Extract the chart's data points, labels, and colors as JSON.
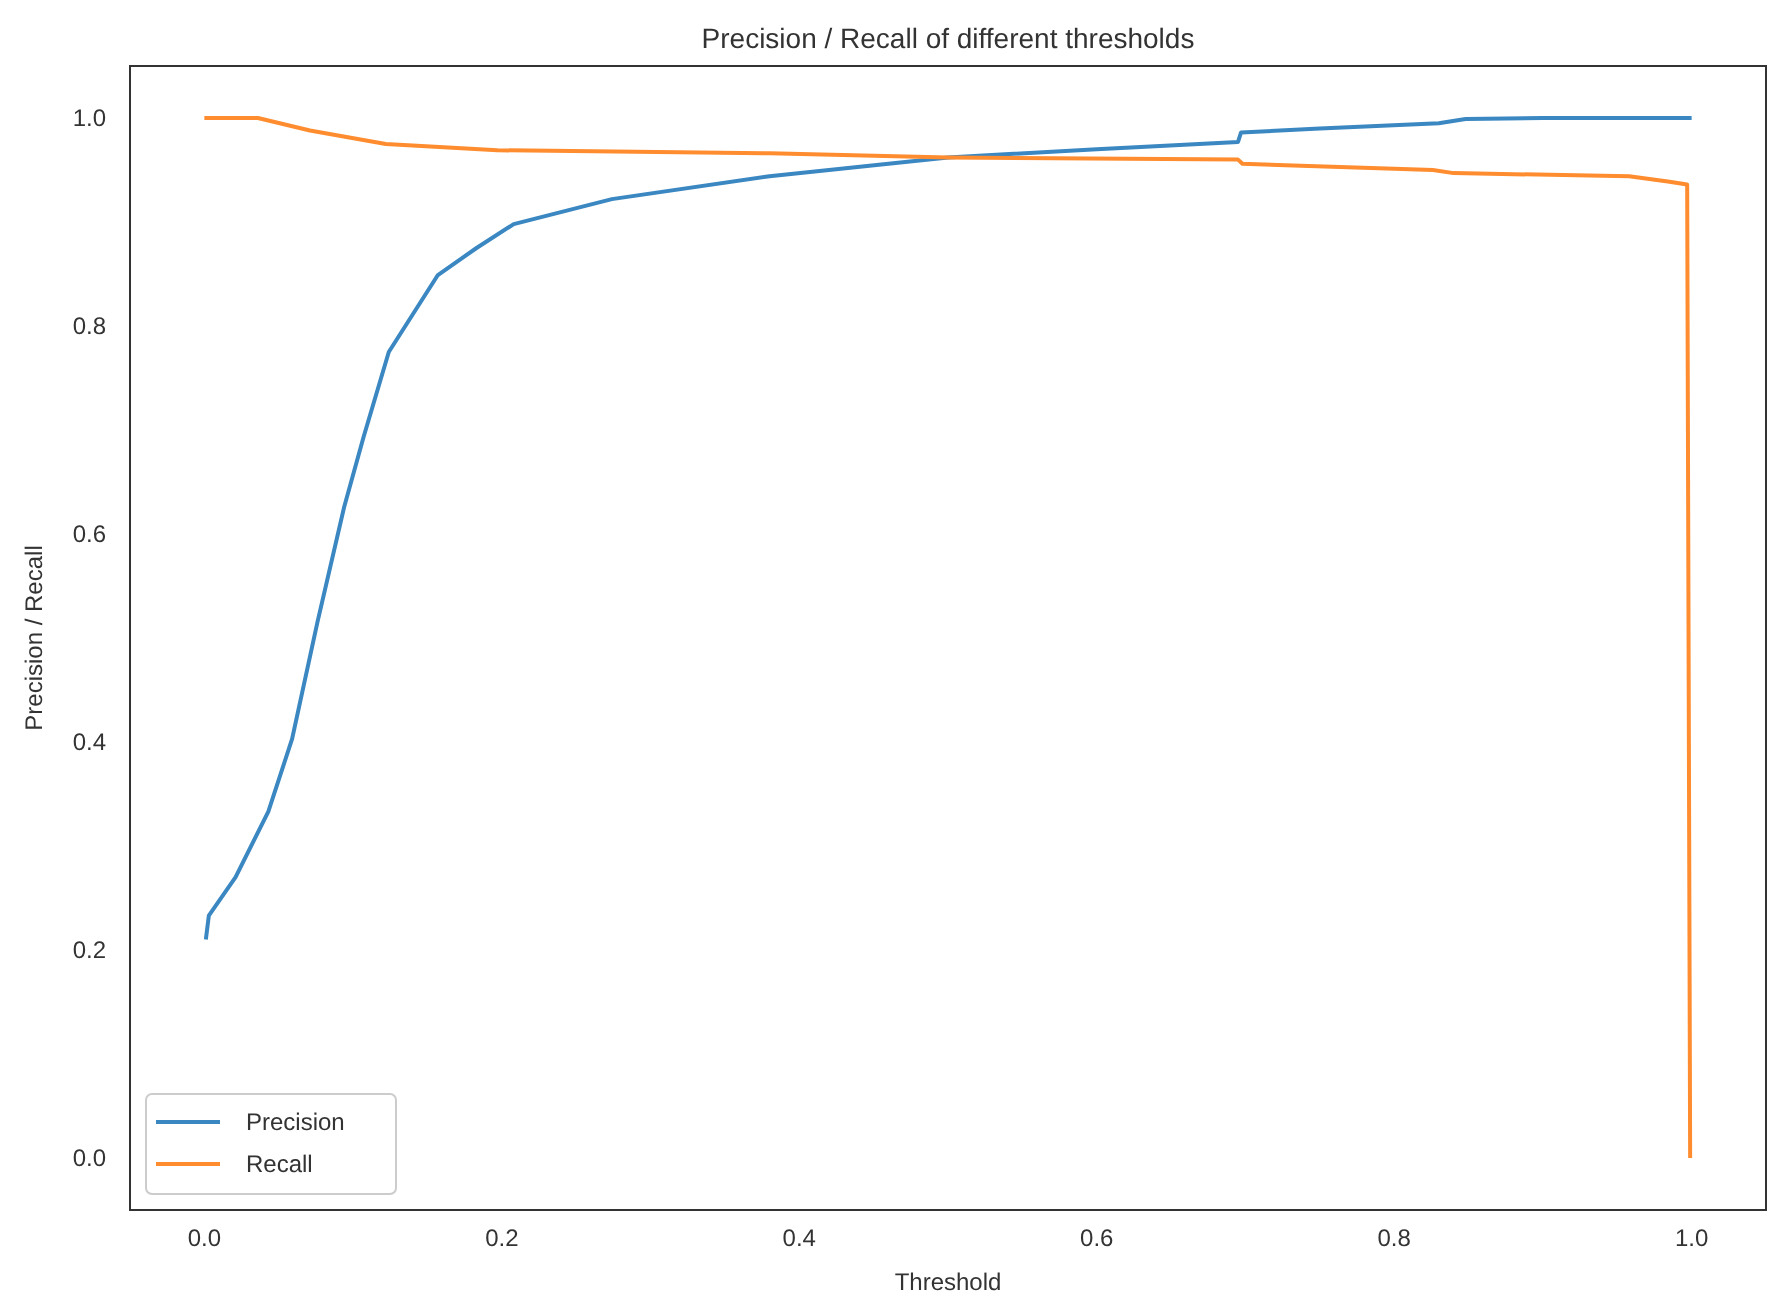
{
  "chart_data": {
    "type": "line",
    "title": "Precision / Recall of different thresholds",
    "xlabel": "Threshold",
    "ylabel": "Precision / Recall",
    "xlim": [
      -0.05,
      1.05
    ],
    "ylim": [
      -0.05,
      1.05
    ],
    "xticks": [
      {
        "value": 0,
        "label": "0.0"
      },
      0.2,
      0.4,
      0.6,
      0.8,
      {
        "value": 1,
        "label": "1.0"
      }
    ],
    "yticks": [
      {
        "value": 0,
        "label": "0.0"
      },
      0.2,
      0.4,
      0.6,
      0.8,
      {
        "value": 1,
        "label": "1.0"
      }
    ],
    "grid": false,
    "legend": "bottom left",
    "marker": "none",
    "line_style": "solid",
    "series": [
      {
        "name": "Precision",
        "color": "#3a87c2",
        "x": [
          0.001,
          0.003,
          0.021,
          0.043,
          0.059,
          0.076,
          0.094,
          0.107,
          0.124,
          0.157,
          0.183,
          0.208,
          0.274,
          0.38,
          0.5,
          0.6,
          0.695,
          0.697,
          0.75,
          0.83,
          0.848,
          0.9,
          1.0
        ],
        "values": [
          0.21,
          0.233,
          0.27,
          0.333,
          0.403,
          0.515,
          0.626,
          0.693,
          0.775,
          0.849,
          0.875,
          0.898,
          0.922,
          0.944,
          0.962,
          0.97,
          0.977,
          0.986,
          0.99,
          0.995,
          0.999,
          1.0,
          1.0
        ]
      },
      {
        "name": "Recall",
        "color": "#ff8c2e",
        "x": [
          0.0,
          0.036,
          0.071,
          0.122,
          0.197,
          0.38,
          0.5,
          0.695,
          0.698,
          0.826,
          0.84,
          0.958,
          0.984,
          0.997,
          0.999
        ],
        "values": [
          1.0,
          1.0,
          0.988,
          0.975,
          0.969,
          0.966,
          0.962,
          0.96,
          0.956,
          0.95,
          0.947,
          0.944,
          0.939,
          0.936,
          0.0
        ]
      }
    ]
  }
}
